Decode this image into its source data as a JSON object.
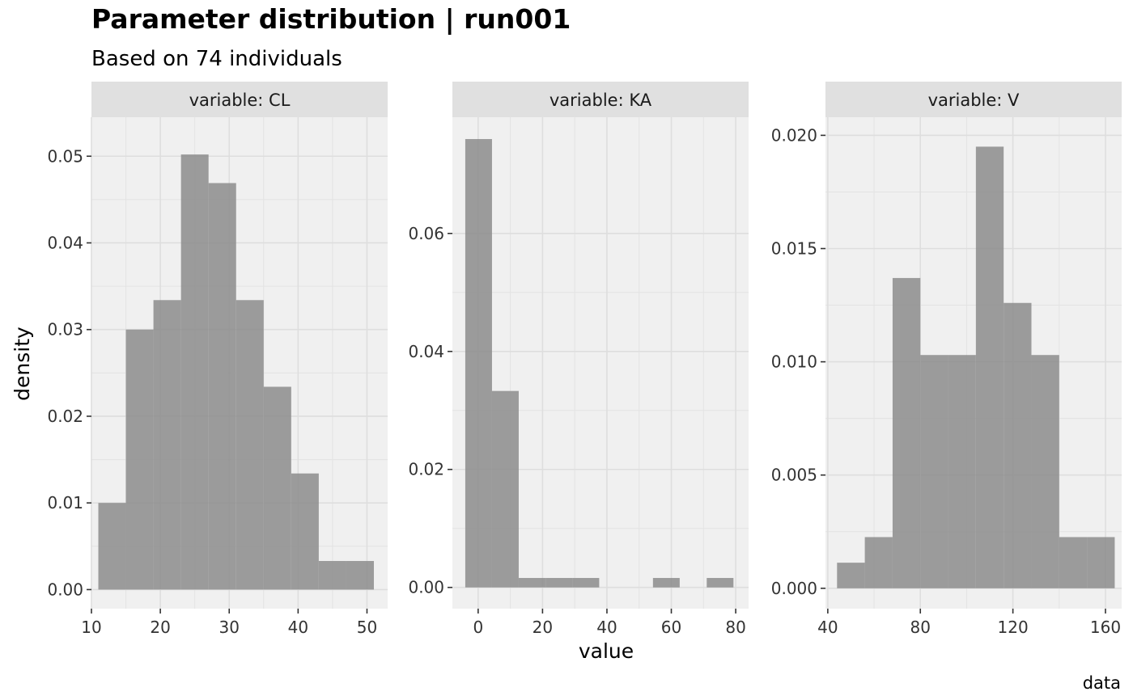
{
  "title": "Parameter distribution | run001",
  "subtitle": "Based on 74 individuals",
  "ylabel": "density",
  "xlabel": "value",
  "caption": "data",
  "colors": {
    "panel_bg": "#f0f0f0",
    "strip_bg": "#e0e0e0",
    "grid": "#e3e3e3",
    "bar": "#8c8c8c",
    "bar_opacity": "0.85",
    "axis": "#333333"
  },
  "chart_data": [
    {
      "type": "bar",
      "facet_label": "variable: CL",
      "xlim": [
        10,
        53
      ],
      "ylim": [
        -0.0022,
        0.0545
      ],
      "xticks": [
        10,
        20,
        30,
        40,
        50
      ],
      "yticks": [
        0.0,
        0.01,
        0.02,
        0.03,
        0.04,
        0.05
      ],
      "ytick_labels": [
        "0.00",
        "0.01",
        "0.02",
        "0.03",
        "0.04",
        "0.05"
      ],
      "bins": [
        {
          "x0": 11.0,
          "x1": 15.0,
          "density": 0.01
        },
        {
          "x0": 15.0,
          "x1": 19.0,
          "density": 0.03
        },
        {
          "x0": 19.0,
          "x1": 23.0,
          "density": 0.0334
        },
        {
          "x0": 23.0,
          "x1": 27.0,
          "density": 0.0502
        },
        {
          "x0": 27.0,
          "x1": 31.0,
          "density": 0.0469
        },
        {
          "x0": 31.0,
          "x1": 35.0,
          "density": 0.0334
        },
        {
          "x0": 35.0,
          "x1": 39.0,
          "density": 0.0234
        },
        {
          "x0": 39.0,
          "x1": 43.0,
          "density": 0.0134
        },
        {
          "x0": 43.0,
          "x1": 47.0,
          "density": 0.0033
        },
        {
          "x0": 47.0,
          "x1": 51.0,
          "density": 0.0033
        }
      ]
    },
    {
      "type": "bar",
      "facet_label": "variable: KA",
      "xlim": [
        -8,
        84
      ],
      "ylim": [
        -0.0036,
        0.0797
      ],
      "xticks": [
        0,
        20,
        40,
        60,
        80
      ],
      "yticks": [
        0.0,
        0.02,
        0.04,
        0.06
      ],
      "ytick_labels": [
        "0.00",
        "0.02",
        "0.04",
        "0.06"
      ],
      "bins": [
        {
          "x0": -4.0,
          "x1": 4.3,
          "density": 0.076
        },
        {
          "x0": 4.3,
          "x1": 12.6,
          "density": 0.0333
        },
        {
          "x0": 12.6,
          "x1": 21.0,
          "density": 0.0016
        },
        {
          "x0": 21.0,
          "x1": 29.3,
          "density": 0.0016
        },
        {
          "x0": 29.3,
          "x1": 37.6,
          "density": 0.0016
        },
        {
          "x0": 54.3,
          "x1": 62.6,
          "density": 0.0016
        },
        {
          "x0": 71.0,
          "x1": 79.3,
          "density": 0.0016
        }
      ]
    },
    {
      "type": "bar",
      "facet_label": "variable: V",
      "xlim": [
        39,
        167
      ],
      "ylim": [
        -0.0009,
        0.0208
      ],
      "xticks": [
        40,
        80,
        120,
        160
      ],
      "yticks": [
        0.0,
        0.005,
        0.01,
        0.015,
        0.02
      ],
      "ytick_labels": [
        "0.000",
        "0.005",
        "0.010",
        "0.015",
        "0.020"
      ],
      "bins": [
        {
          "x0": 44.0,
          "x1": 56.0,
          "density": 0.00113
        },
        {
          "x0": 56.0,
          "x1": 68.0,
          "density": 0.00226
        },
        {
          "x0": 68.0,
          "x1": 80.0,
          "density": 0.0137
        },
        {
          "x0": 80.0,
          "x1": 92.0,
          "density": 0.0103
        },
        {
          "x0": 92.0,
          "x1": 104.0,
          "density": 0.0103
        },
        {
          "x0": 104.0,
          "x1": 116.0,
          "density": 0.0195
        },
        {
          "x0": 116.0,
          "x1": 128.0,
          "density": 0.0126
        },
        {
          "x0": 128.0,
          "x1": 140.0,
          "density": 0.0103
        },
        {
          "x0": 140.0,
          "x1": 152.0,
          "density": 0.00226
        },
        {
          "x0": 152.0,
          "x1": 164.0,
          "density": 0.00226
        }
      ]
    }
  ]
}
